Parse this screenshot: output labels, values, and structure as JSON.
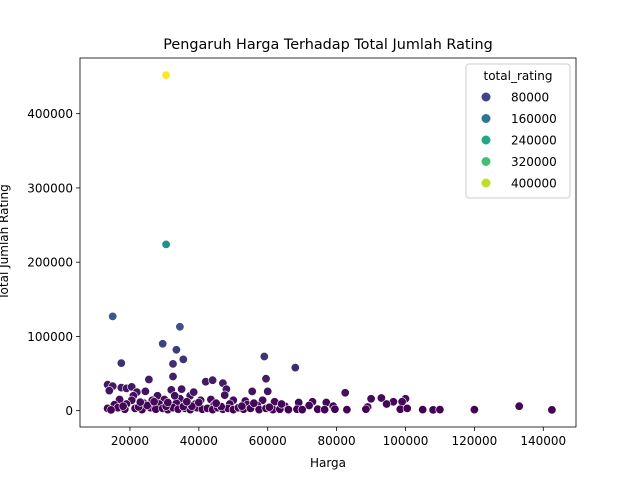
{
  "chart_data": {
    "type": "scatter",
    "title": "Pengaruh Harga Terhadap Total Jumlah Rating",
    "xlabel": "Harga",
    "ylabel": "Total Jumlah Rating",
    "xlim": [
      5500,
      149500
    ],
    "ylim": [
      -22000,
      475000
    ],
    "xticks": [
      20000,
      40000,
      60000,
      80000,
      100000,
      120000,
      140000
    ],
    "xtick_labels": [
      "20000",
      "40000",
      "60000",
      "80000",
      "100000",
      "120000",
      "140000"
    ],
    "yticks": [
      0,
      100000,
      200000,
      300000,
      400000
    ],
    "ytick_labels": [
      "0",
      "100000",
      "200000",
      "300000",
      "400000"
    ],
    "grid": false,
    "legend": {
      "title": "total_rating",
      "position": "top-right",
      "entries": [
        {
          "label": "80000",
          "color": "#414487"
        },
        {
          "label": "160000",
          "color": "#2a788e"
        },
        {
          "label": "240000",
          "color": "#22a884"
        },
        {
          "label": "320000",
          "color": "#44bf70"
        },
        {
          "label": "400000",
          "color": "#bddf26"
        }
      ]
    },
    "hue_range": [
      0,
      452000
    ],
    "points": [
      [
        30500,
        452000
      ],
      [
        30500,
        224000
      ],
      [
        15000,
        127000
      ],
      [
        34500,
        113000
      ],
      [
        17500,
        64000
      ],
      [
        29500,
        90000
      ],
      [
        33500,
        82000
      ],
      [
        35500,
        69000
      ],
      [
        32500,
        63000
      ],
      [
        59000,
        73000
      ],
      [
        68000,
        58000
      ],
      [
        25500,
        42000
      ],
      [
        32500,
        46000
      ],
      [
        42000,
        39000
      ],
      [
        44000,
        41000
      ],
      [
        47000,
        37000
      ],
      [
        59500,
        43000
      ],
      [
        13500,
        35000
      ],
      [
        15000,
        33000
      ],
      [
        17500,
        31000
      ],
      [
        19000,
        30000
      ],
      [
        20500,
        32000
      ],
      [
        14000,
        27000
      ],
      [
        22000,
        25000
      ],
      [
        24500,
        26000
      ],
      [
        32000,
        28000
      ],
      [
        35000,
        29000
      ],
      [
        48000,
        29000
      ],
      [
        55500,
        26000
      ],
      [
        60000,
        26000
      ],
      [
        82500,
        24000
      ],
      [
        21000,
        20000
      ],
      [
        28000,
        20000
      ],
      [
        37500,
        20000
      ],
      [
        47500,
        21000
      ],
      [
        17000,
        15000
      ],
      [
        20500,
        14000
      ],
      [
        26500,
        14000
      ],
      [
        30000,
        15000
      ],
      [
        34500,
        16000
      ],
      [
        40500,
        14000
      ],
      [
        43500,
        15000
      ],
      [
        50000,
        14000
      ],
      [
        53500,
        13000
      ],
      [
        58500,
        14000
      ],
      [
        62000,
        12000
      ],
      [
        69000,
        11000
      ],
      [
        73000,
        12000
      ],
      [
        77000,
        11000
      ],
      [
        90000,
        16000
      ],
      [
        93000,
        17000
      ],
      [
        96500,
        12000
      ],
      [
        100000,
        16000
      ],
      [
        99000,
        12000
      ],
      [
        15500,
        8000
      ],
      [
        19000,
        9000
      ],
      [
        24000,
        10000
      ],
      [
        28500,
        9000
      ],
      [
        33500,
        10000
      ],
      [
        39000,
        9000
      ],
      [
        44500,
        8000
      ],
      [
        49000,
        9000
      ],
      [
        54000,
        8000
      ],
      [
        57000,
        7000
      ],
      [
        65000,
        6000
      ],
      [
        72000,
        7000
      ],
      [
        79000,
        6000
      ],
      [
        89000,
        5000
      ],
      [
        94500,
        9000
      ],
      [
        13500,
        3000
      ],
      [
        16500,
        4000
      ],
      [
        18500,
        2000
      ],
      [
        21500,
        3000
      ],
      [
        23500,
        1500
      ],
      [
        26000,
        4000
      ],
      [
        27500,
        2000
      ],
      [
        29500,
        3000
      ],
      [
        31000,
        1500
      ],
      [
        32500,
        4000
      ],
      [
        34000,
        2000
      ],
      [
        36000,
        3000
      ],
      [
        37500,
        1500
      ],
      [
        39500,
        4000
      ],
      [
        41000,
        2000
      ],
      [
        42500,
        3000
      ],
      [
        44000,
        1500
      ],
      [
        45500,
        4000
      ],
      [
        47000,
        2000
      ],
      [
        48500,
        3000
      ],
      [
        50000,
        1500
      ],
      [
        51500,
        4000
      ],
      [
        53000,
        2000
      ],
      [
        55000,
        3000
      ],
      [
        57500,
        1500
      ],
      [
        59500,
        3000
      ],
      [
        61500,
        1500
      ],
      [
        63500,
        2000
      ],
      [
        66000,
        1500
      ],
      [
        68500,
        2000
      ],
      [
        70000,
        1500
      ],
      [
        74500,
        2000
      ],
      [
        76500,
        1500
      ],
      [
        79500,
        2000
      ],
      [
        83000,
        1500
      ],
      [
        88500,
        2000
      ],
      [
        98500,
        2000
      ],
      [
        100500,
        3000
      ],
      [
        105000,
        1500
      ],
      [
        108000,
        1000
      ],
      [
        110000,
        1500
      ],
      [
        120000,
        1500
      ],
      [
        133000,
        6000
      ],
      [
        142500,
        1000
      ],
      [
        14500,
        1000
      ],
      [
        22500,
        5000
      ],
      [
        30500,
        6000
      ],
      [
        35500,
        5500
      ],
      [
        38000,
        6000
      ],
      [
        46500,
        5500
      ],
      [
        52500,
        6000
      ],
      [
        60500,
        4500
      ],
      [
        25000,
        7000
      ],
      [
        18000,
        6000
      ],
      [
        40000,
        11000
      ],
      [
        45000,
        10000
      ],
      [
        36500,
        12000
      ],
      [
        31000,
        11000
      ],
      [
        27000,
        12000
      ],
      [
        23000,
        11500
      ],
      [
        56000,
        10000
      ],
      [
        64000,
        9000
      ],
      [
        33000,
        20000
      ],
      [
        38500,
        25000
      ]
    ]
  }
}
